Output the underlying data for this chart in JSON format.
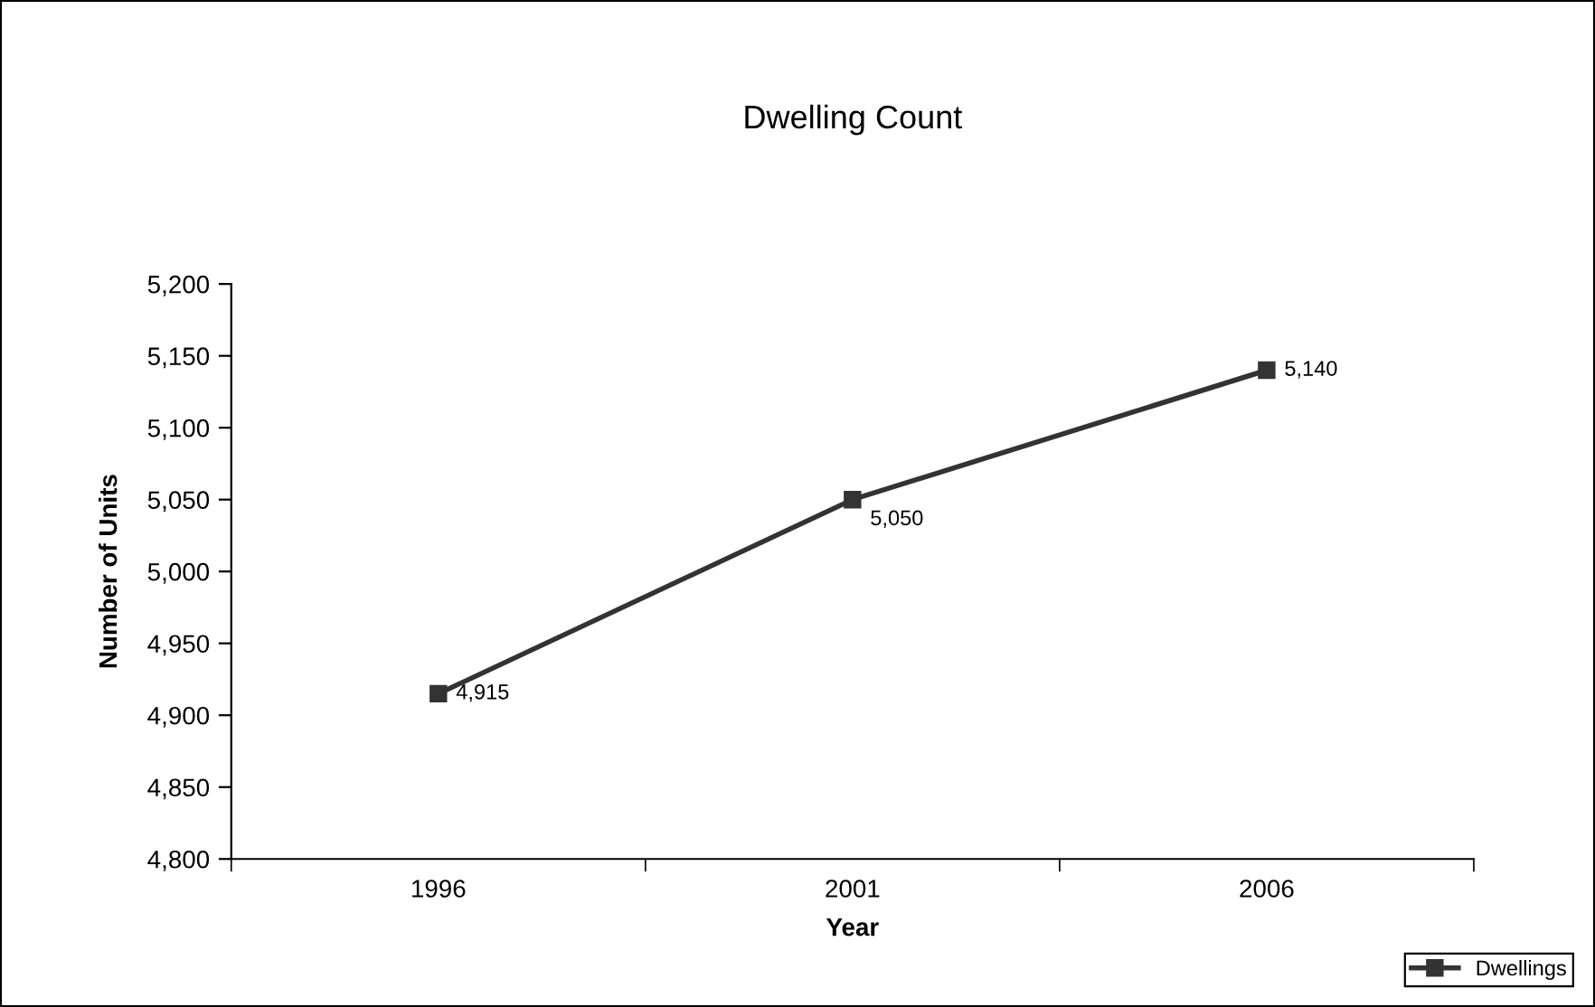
{
  "chart_data": {
    "type": "line",
    "title": "Dwelling Count",
    "xlabel": "Year",
    "ylabel": "Number of Units",
    "categories": [
      "1996",
      "2001",
      "2006"
    ],
    "series": [
      {
        "name": "Dwellings",
        "color": "#333333",
        "values": [
          4915,
          5050,
          5140
        ],
        "value_labels": [
          "4,915",
          "5,050",
          "5,140"
        ]
      }
    ],
    "ylim": [
      4800,
      5200
    ],
    "yticks": [
      {
        "value": 4800,
        "label": "4,800"
      },
      {
        "value": 4850,
        "label": "4,850"
      },
      {
        "value": 4900,
        "label": "4,900"
      },
      {
        "value": 4950,
        "label": "4,950"
      },
      {
        "value": 5000,
        "label": "5,000"
      },
      {
        "value": 5050,
        "label": "5,050"
      },
      {
        "value": 5100,
        "label": "5,100"
      },
      {
        "value": 5150,
        "label": "5,150"
      },
      {
        "value": 5200,
        "label": "5,200"
      }
    ],
    "grid": false,
    "legend": "bottom right",
    "marker": "square",
    "line_style": "solid"
  }
}
